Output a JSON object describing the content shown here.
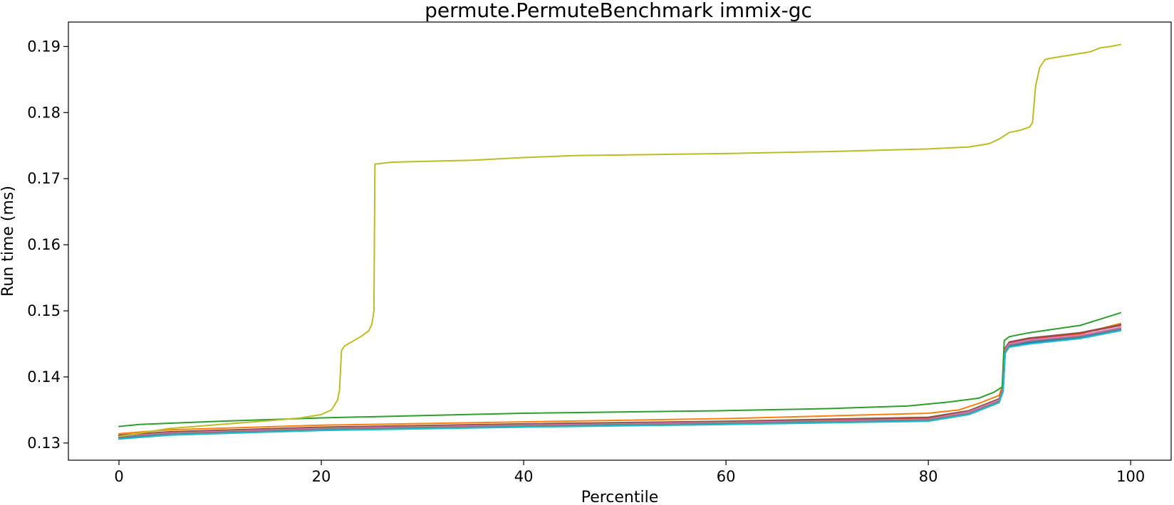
{
  "chart_data": {
    "type": "line",
    "title": "permute.PermuteBenchmark immix-gc",
    "xlabel": "Percentile",
    "ylabel": "Run time (ms)",
    "xlim": [
      -5,
      104
    ],
    "ylim": [
      0.1274,
      0.1937
    ],
    "xticks": [
      0,
      20,
      40,
      60,
      80,
      100
    ],
    "xtick_labels": [
      "0",
      "20",
      "40",
      "60",
      "80",
      "100"
    ],
    "yticks": [
      0.13,
      0.14,
      0.15,
      0.16,
      0.17,
      0.18,
      0.19
    ],
    "ytick_labels": [
      "0.13",
      "0.14",
      "0.15",
      "0.16",
      "0.17",
      "0.18",
      "0.19"
    ],
    "grid": false,
    "legend": "none",
    "series": [
      {
        "color": "#1f77b4",
        "points": [
          [
            0,
            0.1308
          ],
          [
            5,
            0.1313
          ],
          [
            20,
            0.132
          ],
          [
            40,
            0.1325
          ],
          [
            60,
            0.1329
          ],
          [
            80,
            0.1334
          ],
          [
            84,
            0.1344
          ],
          [
            86,
            0.1356
          ],
          [
            87,
            0.1362
          ],
          [
            87.4,
            0.138
          ],
          [
            87.6,
            0.1438
          ],
          [
            88,
            0.1447
          ],
          [
            90,
            0.1452
          ],
          [
            95,
            0.146
          ],
          [
            99,
            0.1472
          ]
        ]
      },
      {
        "color": "#ff7f0e",
        "points": [
          [
            0,
            0.1314
          ],
          [
            5,
            0.132
          ],
          [
            20,
            0.1327
          ],
          [
            40,
            0.1332
          ],
          [
            60,
            0.1337
          ],
          [
            80,
            0.1345
          ],
          [
            83,
            0.135
          ],
          [
            85,
            0.136
          ],
          [
            87,
            0.1372
          ],
          [
            87.4,
            0.139
          ],
          [
            87.6,
            0.144
          ],
          [
            88,
            0.1449
          ],
          [
            90,
            0.1456
          ],
          [
            95,
            0.1465
          ],
          [
            99,
            0.1481
          ]
        ]
      },
      {
        "color": "#2ca02c",
        "points": [
          [
            0,
            0.1325
          ],
          [
            2,
            0.1328
          ],
          [
            10,
            0.1333
          ],
          [
            20,
            0.1338
          ],
          [
            40,
            0.1345
          ],
          [
            60,
            0.1349
          ],
          [
            70,
            0.1352
          ],
          [
            78,
            0.1356
          ],
          [
            82,
            0.1362
          ],
          [
            85,
            0.1368
          ],
          [
            86.5,
            0.1377
          ],
          [
            87.3,
            0.1385
          ],
          [
            87.5,
            0.1455
          ],
          [
            88,
            0.1461
          ],
          [
            90,
            0.1467
          ],
          [
            95,
            0.1478
          ],
          [
            99,
            0.1497
          ]
        ]
      },
      {
        "color": "#d62728",
        "points": [
          [
            0,
            0.1311
          ],
          [
            5,
            0.1316
          ],
          [
            20,
            0.1323
          ],
          [
            40,
            0.1328
          ],
          [
            60,
            0.1332
          ],
          [
            80,
            0.1338
          ],
          [
            84,
            0.1348
          ],
          [
            86,
            0.136
          ],
          [
            87,
            0.1366
          ],
          [
            87.4,
            0.1385
          ],
          [
            87.6,
            0.1443
          ],
          [
            88,
            0.1452
          ],
          [
            90,
            0.1458
          ],
          [
            95,
            0.1466
          ],
          [
            99,
            0.1478
          ]
        ]
      },
      {
        "color": "#9467bd",
        "points": [
          [
            0,
            0.1309
          ],
          [
            5,
            0.1314
          ],
          [
            20,
            0.1321
          ],
          [
            40,
            0.1326
          ],
          [
            60,
            0.133
          ],
          [
            80,
            0.1335
          ],
          [
            84,
            0.1346
          ],
          [
            86,
            0.1358
          ],
          [
            87,
            0.1364
          ],
          [
            87.4,
            0.1382
          ],
          [
            87.6,
            0.144
          ],
          [
            88,
            0.1449
          ],
          [
            90,
            0.1455
          ],
          [
            95,
            0.1462
          ],
          [
            99,
            0.1474
          ]
        ]
      },
      {
        "color": "#8c564b",
        "points": [
          [
            0,
            0.1312
          ],
          [
            5,
            0.1317
          ],
          [
            20,
            0.1324
          ],
          [
            40,
            0.1329
          ],
          [
            60,
            0.1333
          ],
          [
            80,
            0.1339
          ],
          [
            84,
            0.1349
          ],
          [
            86,
            0.1361
          ],
          [
            87,
            0.1367
          ],
          [
            87.4,
            0.1386
          ],
          [
            87.6,
            0.1444
          ],
          [
            88,
            0.1453
          ],
          [
            90,
            0.1459
          ],
          [
            95,
            0.1467
          ],
          [
            99,
            0.1479
          ]
        ]
      },
      {
        "color": "#e377c2",
        "points": [
          [
            0,
            0.131
          ],
          [
            5,
            0.1315
          ],
          [
            20,
            0.1322
          ],
          [
            40,
            0.1327
          ],
          [
            60,
            0.1331
          ],
          [
            80,
            0.1336
          ],
          [
            84,
            0.1347
          ],
          [
            86,
            0.1359
          ],
          [
            87,
            0.1365
          ],
          [
            87.4,
            0.1383
          ],
          [
            87.6,
            0.1441
          ],
          [
            88,
            0.145
          ],
          [
            90,
            0.1456
          ],
          [
            95,
            0.1463
          ],
          [
            99,
            0.1475
          ]
        ]
      },
      {
        "color": "#7f7f7f",
        "points": [
          [
            0,
            0.1309
          ],
          [
            5,
            0.1314
          ],
          [
            20,
            0.1321
          ],
          [
            40,
            0.1326
          ],
          [
            60,
            0.133
          ],
          [
            80,
            0.1335
          ],
          [
            84,
            0.1345
          ],
          [
            86,
            0.1357
          ],
          [
            87,
            0.1363
          ],
          [
            87.4,
            0.1381
          ],
          [
            87.6,
            0.1439
          ],
          [
            88,
            0.1448
          ],
          [
            90,
            0.1454
          ],
          [
            95,
            0.1461
          ],
          [
            99,
            0.1473
          ]
        ]
      },
      {
        "color": "#bcbd22",
        "points": [
          [
            0,
            0.131
          ],
          [
            5,
            0.1322
          ],
          [
            10,
            0.1328
          ],
          [
            15,
            0.1334
          ],
          [
            18,
            0.1338
          ],
          [
            20,
            0.1343
          ],
          [
            21,
            0.135
          ],
          [
            21.6,
            0.1365
          ],
          [
            21.8,
            0.138
          ],
          [
            22,
            0.144
          ],
          [
            22.3,
            0.1447
          ],
          [
            23,
            0.1453
          ],
          [
            24,
            0.1462
          ],
          [
            24.7,
            0.147
          ],
          [
            25,
            0.148
          ],
          [
            25.2,
            0.15
          ],
          [
            25.3,
            0.1722
          ],
          [
            27,
            0.1725
          ],
          [
            35,
            0.1728
          ],
          [
            40,
            0.1732
          ],
          [
            45,
            0.1735
          ],
          [
            60,
            0.1738
          ],
          [
            70,
            0.1741
          ],
          [
            80,
            0.1745
          ],
          [
            84,
            0.1748
          ],
          [
            86,
            0.1753
          ],
          [
            87,
            0.176
          ],
          [
            88,
            0.177
          ],
          [
            89,
            0.1773
          ],
          [
            90,
            0.1778
          ],
          [
            90.3,
            0.1785
          ],
          [
            90.6,
            0.184
          ],
          [
            91,
            0.1868
          ],
          [
            91.5,
            0.188
          ],
          [
            92,
            0.1882
          ],
          [
            94,
            0.1887
          ],
          [
            96,
            0.1892
          ],
          [
            97,
            0.1898
          ],
          [
            98,
            0.19
          ],
          [
            99,
            0.1903
          ]
        ]
      },
      {
        "color": "#17becf",
        "points": [
          [
            0,
            0.1306
          ],
          [
            5,
            0.1312
          ],
          [
            20,
            0.1319
          ],
          [
            40,
            0.1324
          ],
          [
            60,
            0.1328
          ],
          [
            80,
            0.1333
          ],
          [
            84,
            0.1343
          ],
          [
            86,
            0.1355
          ],
          [
            87,
            0.1361
          ],
          [
            87.4,
            0.1378
          ],
          [
            87.6,
            0.1436
          ],
          [
            88,
            0.1445
          ],
          [
            90,
            0.145
          ],
          [
            95,
            0.1458
          ],
          [
            99,
            0.147
          ]
        ]
      }
    ]
  }
}
